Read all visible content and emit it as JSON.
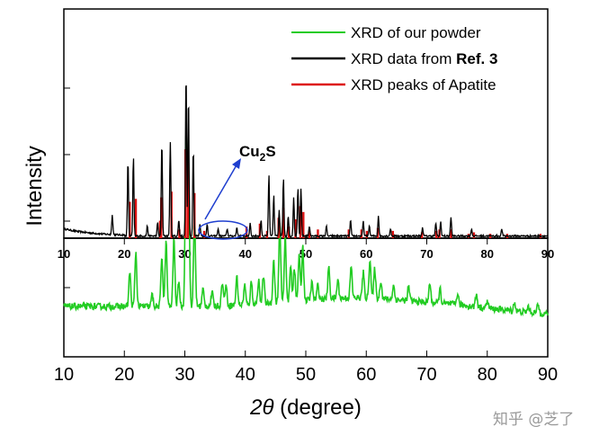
{
  "chart_data": {
    "type": "line",
    "xlabel_var": "2θ",
    "xlabel_unit": "(degree)",
    "ylabel": "Intensity",
    "xlim": [
      10,
      90
    ],
    "xticks": [
      "10",
      "20",
      "30",
      "40",
      "50",
      "60",
      "70",
      "80",
      "90"
    ],
    "legend_placement": "top-right",
    "legend": [
      {
        "label": "XRD of our powder",
        "color": "#22cc22"
      },
      {
        "label_prefix": "XRD data from ",
        "label_bold": "Ref. 3",
        "color": "#000000"
      },
      {
        "label": "XRD peaks of Apatite",
        "color": "#dd1111"
      }
    ],
    "annotation": {
      "text_main": "Cu",
      "text_sub": "2",
      "text_tail": "S",
      "target_x": 36,
      "color": "#1f3fcf"
    },
    "series": [
      {
        "name": "XRD data from Ref. 3",
        "color": "#000000",
        "baseline": 1.5,
        "peaks": [
          [
            18.0,
            14
          ],
          [
            20.6,
            52
          ],
          [
            21.5,
            54
          ],
          [
            23.8,
            7
          ],
          [
            25.5,
            9
          ],
          [
            26.2,
            65
          ],
          [
            27.6,
            65
          ],
          [
            29.0,
            11
          ],
          [
            30.2,
            113
          ],
          [
            30.6,
            96
          ],
          [
            31.4,
            60
          ],
          [
            32.5,
            8
          ],
          [
            33.7,
            8
          ],
          [
            35.5,
            5
          ],
          [
            37.0,
            5
          ],
          [
            38.6,
            6
          ],
          [
            40.8,
            9
          ],
          [
            42.6,
            11
          ],
          [
            43.9,
            42
          ],
          [
            44.7,
            28
          ],
          [
            45.6,
            18
          ],
          [
            46.3,
            40
          ],
          [
            47.1,
            14
          ],
          [
            48.0,
            26
          ],
          [
            48.7,
            33
          ],
          [
            49.2,
            32
          ],
          [
            50.6,
            7
          ],
          [
            53.4,
            7
          ],
          [
            57.4,
            11
          ],
          [
            59.5,
            10
          ],
          [
            60.5,
            7
          ],
          [
            62.0,
            14
          ],
          [
            64.0,
            5
          ],
          [
            69.3,
            6
          ],
          [
            71.5,
            9
          ],
          [
            72.3,
            10
          ],
          [
            74.0,
            13
          ],
          [
            77.4,
            5
          ],
          [
            82.4,
            5
          ]
        ]
      },
      {
        "name": "XRD peaks of Apatite",
        "color": "#dd1111",
        "sticks": [
          [
            20.9,
            25
          ],
          [
            21.9,
            27
          ],
          [
            25.9,
            12
          ],
          [
            26.1,
            28
          ],
          [
            27.8,
            32
          ],
          [
            29.1,
            6
          ],
          [
            30.1,
            61
          ],
          [
            30.5,
            52
          ],
          [
            31.6,
            31
          ],
          [
            33.2,
            5
          ],
          [
            40.2,
            8
          ],
          [
            42.4,
            10
          ],
          [
            43.6,
            5
          ],
          [
            45.5,
            14
          ],
          [
            46.3,
            21
          ],
          [
            47.2,
            8
          ],
          [
            48.3,
            13
          ],
          [
            49.1,
            22
          ],
          [
            49.6,
            18
          ],
          [
            50.6,
            5
          ],
          [
            52.0,
            6
          ],
          [
            57.1,
            6
          ],
          [
            59.2,
            6
          ],
          [
            60.1,
            5
          ],
          [
            61.9,
            7
          ],
          [
            64.4,
            5
          ],
          [
            69.2,
            4
          ],
          [
            71.6,
            5
          ],
          [
            72.1,
            6
          ],
          [
            74.0,
            6
          ],
          [
            76.9,
            3
          ],
          [
            77.8,
            4
          ],
          [
            80.5,
            3
          ],
          [
            83.3,
            3
          ],
          [
            88.8,
            3
          ]
        ]
      },
      {
        "name": "XRD of our powder",
        "color": "#22cc22",
        "baseline": 26,
        "peaks": [
          [
            20.9,
            24
          ],
          [
            21.9,
            38
          ],
          [
            24.6,
            8
          ],
          [
            26.2,
            35
          ],
          [
            26.9,
            45
          ],
          [
            28.2,
            47
          ],
          [
            29.0,
            17
          ],
          [
            30.2,
            120
          ],
          [
            30.6,
            100
          ],
          [
            31.6,
            62
          ],
          [
            33.0,
            12
          ],
          [
            34.5,
            10
          ],
          [
            36.2,
            17
          ],
          [
            36.8,
            15
          ],
          [
            38.6,
            20
          ],
          [
            39.9,
            14
          ],
          [
            41.0,
            16
          ],
          [
            42.2,
            17
          ],
          [
            43.0,
            20
          ],
          [
            44.7,
            30
          ],
          [
            45.7,
            55
          ],
          [
            46.6,
            45
          ],
          [
            47.5,
            25
          ],
          [
            48.1,
            24
          ],
          [
            48.9,
            32
          ],
          [
            49.5,
            38
          ],
          [
            51.0,
            12
          ],
          [
            52.0,
            10
          ],
          [
            53.8,
            22
          ],
          [
            55.3,
            13
          ],
          [
            57.5,
            22
          ],
          [
            59.5,
            18
          ],
          [
            60.6,
            28
          ],
          [
            61.4,
            21
          ],
          [
            62.4,
            13
          ],
          [
            64.5,
            10
          ],
          [
            67.0,
            10
          ],
          [
            70.5,
            14
          ],
          [
            72.2,
            10
          ],
          [
            75.1,
            8
          ],
          [
            78.2,
            9
          ],
          [
            80.0,
            5
          ],
          [
            84.5,
            6
          ],
          [
            86.8,
            4
          ],
          [
            88.4,
            6
          ]
        ]
      }
    ]
  },
  "watermark": "知乎 @芝了"
}
